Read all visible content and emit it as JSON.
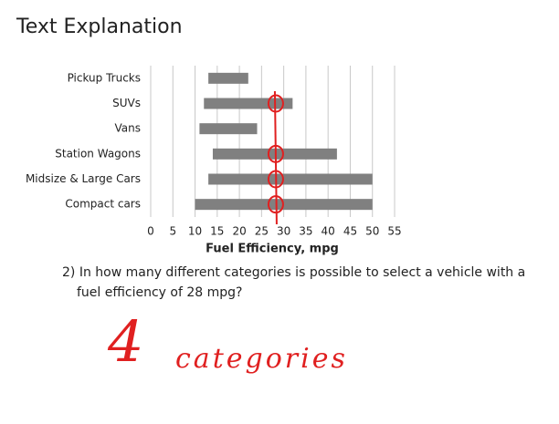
{
  "header": {
    "title": "Text Explanation"
  },
  "chart_data": {
    "type": "range",
    "categories": [
      "Pickup Trucks",
      "SUVs",
      "Vans",
      "Station Wagons",
      "Midsize & Large Cars",
      "Compact cars"
    ],
    "values": [
      [
        13,
        22
      ],
      [
        12,
        32
      ],
      [
        11,
        24
      ],
      [
        14,
        42
      ],
      [
        13,
        50
      ],
      [
        10,
        50
      ]
    ],
    "color": "#808080",
    "xlabel": "Fuel Efficiency, mpg",
    "xlim": [
      0,
      55
    ],
    "xticks": [
      0,
      5,
      10,
      15,
      20,
      25,
      30,
      35,
      40,
      45,
      50,
      55
    ],
    "grid": true,
    "reference_x": 28,
    "reference_color": "#e02020"
  },
  "question": {
    "lines": [
      "2) In how many different categories is possible to select a vehicle with a",
      "fuel efficiency of 28 mpg?"
    ]
  },
  "answer": {
    "number": "4",
    "word": "categories"
  }
}
